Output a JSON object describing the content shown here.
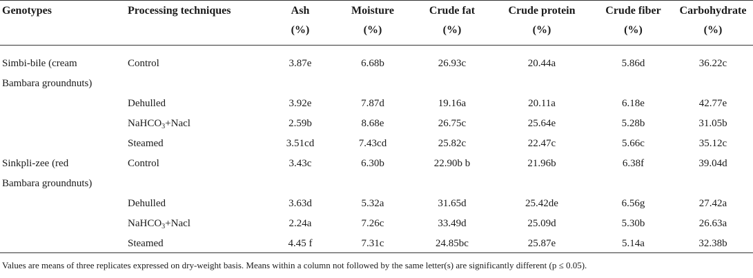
{
  "headers": {
    "genotypes": "Genotypes",
    "processing": "Processing techniques",
    "ash": [
      "Ash",
      "(%)"
    ],
    "moisture": [
      "Moisture",
      "(%)"
    ],
    "crude_fat": [
      "Crude fat",
      "(%)"
    ],
    "crude_protein": [
      "Crude protein",
      "(%)"
    ],
    "crude_fiber": [
      "Crude fiber",
      "(%)"
    ],
    "carbohydrate": [
      "Carbohydrate",
      "(%)"
    ]
  },
  "groups": [
    {
      "genotype": [
        "Simbi-bile (cream",
        "Bambara groundnuts)"
      ],
      "rows": [
        {
          "technique": "Control",
          "ash": "3.87e",
          "moisture": "6.68b",
          "fat": "26.93c",
          "protein": "20.44a",
          "fiber": "5.86d",
          "carb": "36.22c"
        },
        {
          "technique": "Dehulled",
          "ash": "3.92e",
          "moisture": "7.87d",
          "fat": "19.16a",
          "protein": "20.11a",
          "fiber": "6.18e",
          "carb": "42.77e"
        },
        {
          "technique_pre": "NaHCO",
          "technique_sub": "3",
          "technique_post": "+Nacl",
          "ash": "2.59b",
          "moisture": "8.68e",
          "fat": "26.75c",
          "protein": "25.64e",
          "fiber": "5.28b",
          "carb": "31.05b"
        },
        {
          "technique": "Steamed",
          "ash": "3.51cd",
          "moisture": "7.43cd",
          "fat": "25.82c",
          "protein": "22.47c",
          "fiber": "5.66c",
          "carb": "35.12c"
        }
      ]
    },
    {
      "genotype": [
        "Sinkpli-zee (red",
        "Bambara groundnuts)"
      ],
      "rows": [
        {
          "technique": "Control",
          "ash": "3.43c",
          "moisture": "6.30b",
          "fat": "22.90b b",
          "protein": "21.96b",
          "fiber": "6.38f",
          "carb": "39.04d"
        },
        {
          "technique": "Dehulled",
          "ash": "3.63d",
          "moisture": "5.32a",
          "fat": "31.65d",
          "protein": "25.42de",
          "fiber": "6.56g",
          "carb": "27.42a"
        },
        {
          "technique_pre": "NaHCO",
          "technique_sub": "3",
          "technique_post": "+Nacl",
          "ash": "2.24a",
          "moisture": "7.26c",
          "fat": "33.49d",
          "protein": "25.09d",
          "fiber": "5.30b",
          "carb": "26.63a"
        },
        {
          "technique": "Steamed",
          "ash": "4.45 f",
          "moisture": "7.31c",
          "fat": "24.85bc",
          "protein": "25.87e",
          "fiber": "5.14a",
          "carb": "32.38b"
        }
      ]
    }
  ],
  "footnote": "Values are means of three replicates expressed on dry-weight basis. Means within a column not followed by the same letter(s) are significantly different (p ≤ 0.05)."
}
